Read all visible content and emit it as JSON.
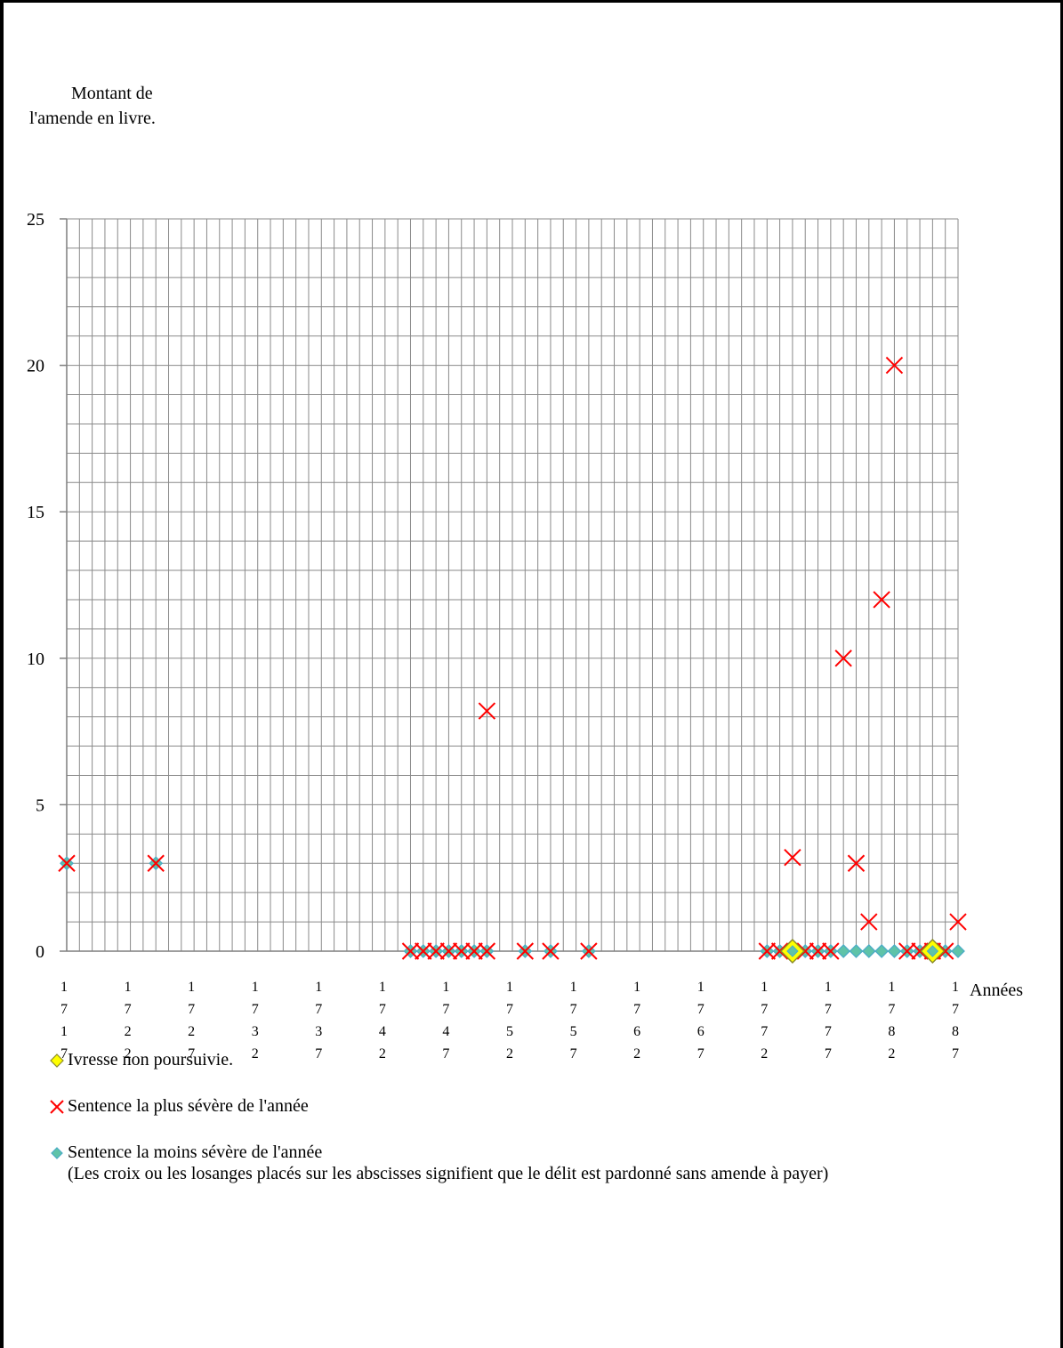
{
  "chart_data": {
    "type": "scatter",
    "ylabel_lines": [
      "Montant de",
      "l'amende en livre."
    ],
    "xlabel": "Années",
    "ylim": [
      0,
      25
    ],
    "yticks": [
      0,
      5,
      10,
      15,
      20,
      25
    ],
    "xlim": [
      1717,
      1787
    ],
    "xticks": [
      {
        "value": 1717,
        "label": "1717"
      },
      {
        "value": 1722,
        "label": "1722"
      },
      {
        "value": 1727,
        "label": "1727"
      },
      {
        "value": 1732,
        "label": "1732"
      },
      {
        "value": 1737,
        "label": "1737"
      },
      {
        "value": 1742,
        "label": "1742"
      },
      {
        "value": 1747,
        "label": "1747"
      },
      {
        "value": 1752,
        "label": "1752"
      },
      {
        "value": 1757,
        "label": "1757"
      },
      {
        "value": 1762,
        "label": "1762"
      },
      {
        "value": 1767,
        "label": "1767"
      },
      {
        "value": 1772,
        "label": "1772"
      },
      {
        "value": 1777,
        "label": "1777"
      },
      {
        "value": 1782,
        "label": "1782"
      },
      {
        "value": 1787,
        "label": "1787"
      }
    ],
    "grid": true,
    "legend_position": "bottom-left",
    "series": [
      {
        "name": "Ivresse non poursuivie.",
        "marker": "diamond-large",
        "color": "#ffff00",
        "stroke": "#8c8c2a",
        "points": [
          [
            1774,
            0
          ],
          [
            1785,
            0
          ]
        ]
      },
      {
        "name": "Sentence la plus sévère de l'année",
        "marker": "cross",
        "color": "#ff0000",
        "points": [
          [
            1717,
            3
          ],
          [
            1724,
            3
          ],
          [
            1744,
            0
          ],
          [
            1745,
            0
          ],
          [
            1746,
            0
          ],
          [
            1747,
            0
          ],
          [
            1748,
            0
          ],
          [
            1749,
            0
          ],
          [
            1750,
            0
          ],
          [
            1750,
            8.2
          ],
          [
            1753,
            0
          ],
          [
            1755,
            0
          ],
          [
            1758,
            0
          ],
          [
            1772,
            0
          ],
          [
            1773,
            0
          ],
          [
            1774,
            3.2
          ],
          [
            1775,
            0
          ],
          [
            1776,
            0
          ],
          [
            1777,
            0
          ],
          [
            1778,
            10
          ],
          [
            1779,
            3
          ],
          [
            1780,
            1
          ],
          [
            1781,
            12
          ],
          [
            1782,
            20
          ],
          [
            1783,
            0
          ],
          [
            1784,
            0
          ],
          [
            1785,
            0
          ],
          [
            1786,
            0
          ],
          [
            1787,
            1
          ]
        ]
      },
      {
        "name": "Sentence la moins sévère de l'année",
        "marker": "diamond",
        "color": "#4bacc6",
        "fill": "#5fc3a8",
        "points": [
          [
            1717,
            3
          ],
          [
            1724,
            3
          ],
          [
            1744,
            0
          ],
          [
            1745,
            0
          ],
          [
            1746,
            0
          ],
          [
            1747,
            0
          ],
          [
            1748,
            0
          ],
          [
            1749,
            0
          ],
          [
            1750,
            0
          ],
          [
            1753,
            0
          ],
          [
            1755,
            0
          ],
          [
            1758,
            0
          ],
          [
            1772,
            0
          ],
          [
            1773,
            0
          ],
          [
            1774,
            0
          ],
          [
            1775,
            0
          ],
          [
            1776,
            0
          ],
          [
            1777,
            0
          ],
          [
            1778,
            0
          ],
          [
            1779,
            0
          ],
          [
            1780,
            0
          ],
          [
            1781,
            0
          ],
          [
            1782,
            0
          ],
          [
            1783,
            0
          ],
          [
            1784,
            0
          ],
          [
            1785,
            0
          ],
          [
            1786,
            0
          ],
          [
            1787,
            0
          ]
        ]
      }
    ]
  },
  "note": "(Les croix ou les losanges placés sur les abscisses signifient que le délit est pardonné sans amende à payer)"
}
